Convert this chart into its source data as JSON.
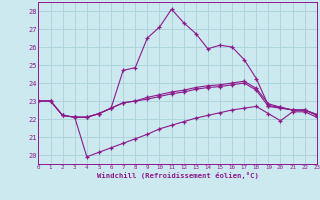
{
  "bg_color": "#cde9f0",
  "grid_color": "#aed4dc",
  "line_color": "#8b1a8b",
  "xlim": [
    0,
    23
  ],
  "ylim": [
    19.5,
    28.5
  ],
  "yticks": [
    20,
    21,
    22,
    23,
    24,
    25,
    26,
    27,
    28
  ],
  "xticks": [
    0,
    1,
    2,
    3,
    4,
    5,
    6,
    7,
    8,
    9,
    10,
    11,
    12,
    13,
    14,
    15,
    16,
    17,
    18,
    19,
    20,
    21,
    22,
    23
  ],
  "xlabel": "Windchill (Refroidissement éolien,°C)",
  "line1_x": [
    0,
    1,
    2,
    3,
    4,
    5,
    6,
    7,
    8,
    9,
    10,
    11,
    12,
    13,
    14,
    15,
    16,
    17,
    18,
    19,
    20,
    21,
    22,
    23
  ],
  "line1_y": [
    23.0,
    23.0,
    22.2,
    22.1,
    22.1,
    22.3,
    22.6,
    22.9,
    23.0,
    23.2,
    23.35,
    23.5,
    23.6,
    23.75,
    23.85,
    23.9,
    24.0,
    24.1,
    23.7,
    22.85,
    22.65,
    22.5,
    22.5,
    22.25
  ],
  "line2_x": [
    0,
    1,
    2,
    3,
    4,
    5,
    6,
    7,
    8,
    9,
    10,
    11,
    12,
    13,
    14,
    15,
    16,
    17,
    18,
    19,
    20,
    21,
    22,
    23
  ],
  "line2_y": [
    23.0,
    23.0,
    22.2,
    22.1,
    22.1,
    22.3,
    22.6,
    24.7,
    24.85,
    26.5,
    27.1,
    28.1,
    27.35,
    26.75,
    25.9,
    26.1,
    26.0,
    25.3,
    24.25,
    22.75,
    22.65,
    22.5,
    22.5,
    22.25
  ],
  "line3_x": [
    0,
    1,
    2,
    3,
    4,
    5,
    6,
    7,
    8,
    9,
    10,
    11,
    12,
    13,
    14,
    15,
    16,
    17,
    18,
    19,
    20,
    21,
    22,
    23
  ],
  "line3_y": [
    23.0,
    23.0,
    22.2,
    22.1,
    22.1,
    22.3,
    22.6,
    22.9,
    23.0,
    23.1,
    23.25,
    23.4,
    23.5,
    23.65,
    23.75,
    23.8,
    23.9,
    24.0,
    23.6,
    22.7,
    22.6,
    22.5,
    22.5,
    22.2
  ],
  "line4_x": [
    3,
    4,
    5,
    6,
    7,
    8,
    9,
    10,
    11,
    12,
    13,
    14,
    15,
    16,
    17,
    18,
    19,
    20,
    21,
    22,
    23
  ],
  "line4_y": [
    22.1,
    19.9,
    20.15,
    20.4,
    20.65,
    20.9,
    21.15,
    21.45,
    21.65,
    21.85,
    22.05,
    22.2,
    22.35,
    22.5,
    22.6,
    22.7,
    22.3,
    21.9,
    22.4,
    22.4,
    22.1
  ]
}
